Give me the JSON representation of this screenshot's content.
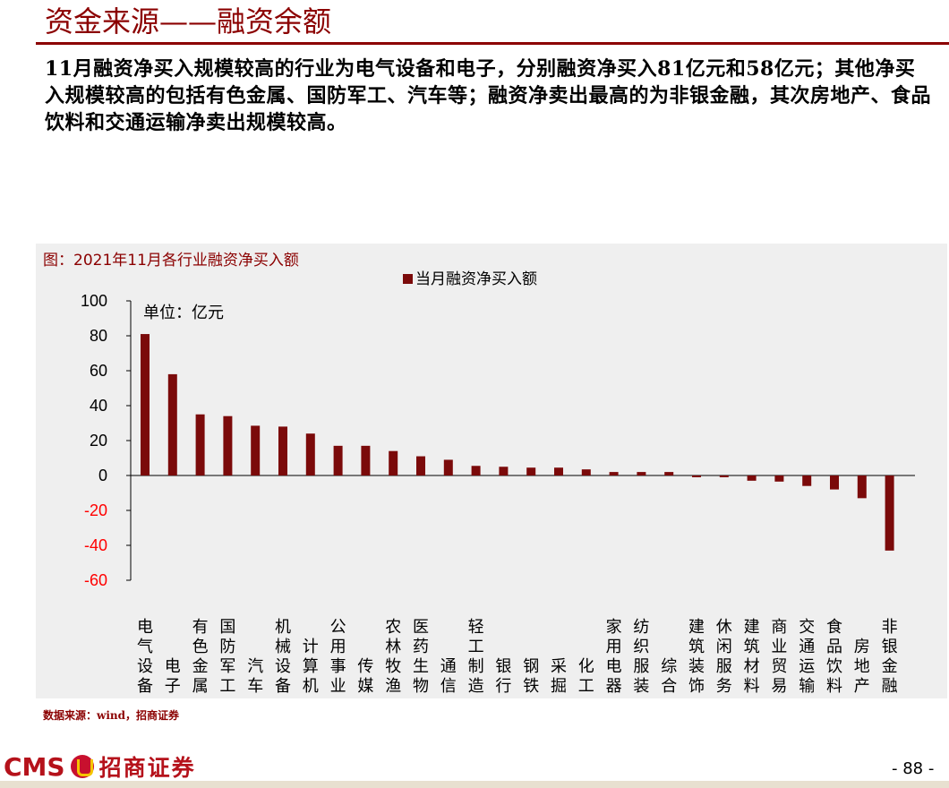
{
  "page": {
    "title": "资金来源——融资余额",
    "summary": "11月融资净买入规模较高的行业为电气设备和电子，分别融资净买入81亿元和58亿元；其他净买入规模较高的包括有色金属、国防军工、汽车等；融资净卖出最高的为非银金融，其次房地产、食品饮料和交通运输净卖出规模较高。",
    "source": "数据来源：wind，招商证券",
    "logo_brand": "CMS",
    "logo_name": "招商证券",
    "page_number": "- 88 -"
  },
  "colors": {
    "accent": "#8b0000",
    "bar": "#7b0a0a",
    "negative_tick": "#ff0000",
    "panel": "#efefef"
  },
  "chart_data": {
    "type": "bar",
    "title": "图：2021年11月各行业融资净买入额",
    "unit_note": "单位：亿元",
    "legend": "top-center",
    "ylim": [
      -60,
      100
    ],
    "yticks": [
      100,
      80,
      60,
      40,
      20,
      0,
      -20,
      -40,
      -60
    ],
    "grid": false,
    "categories": [
      "电气设备",
      "电子",
      "有色金属",
      "国防军工",
      "汽车",
      "机械设备",
      "计算机",
      "公用事业",
      "传媒",
      "农林牧渔",
      "医药生物",
      "通信",
      "轻工制造",
      "银行",
      "钢铁",
      "采掘",
      "化工",
      "家用电器",
      "纺织服装",
      "综合",
      "建筑装饰",
      "休闲服务",
      "建筑材料",
      "商业贸易",
      "交通运输",
      "食品饮料",
      "房地产",
      "非银金融"
    ],
    "series": [
      {
        "name": "当月融资净买入额",
        "values": [
          81,
          58,
          35,
          34,
          28.5,
          28,
          24,
          17,
          17,
          14,
          11,
          9,
          5.5,
          5,
          4.5,
          4.5,
          3.5,
          2,
          2,
          2,
          -1,
          -1,
          -3,
          -3.5,
          -6,
          -8,
          -13,
          -43
        ]
      }
    ]
  }
}
